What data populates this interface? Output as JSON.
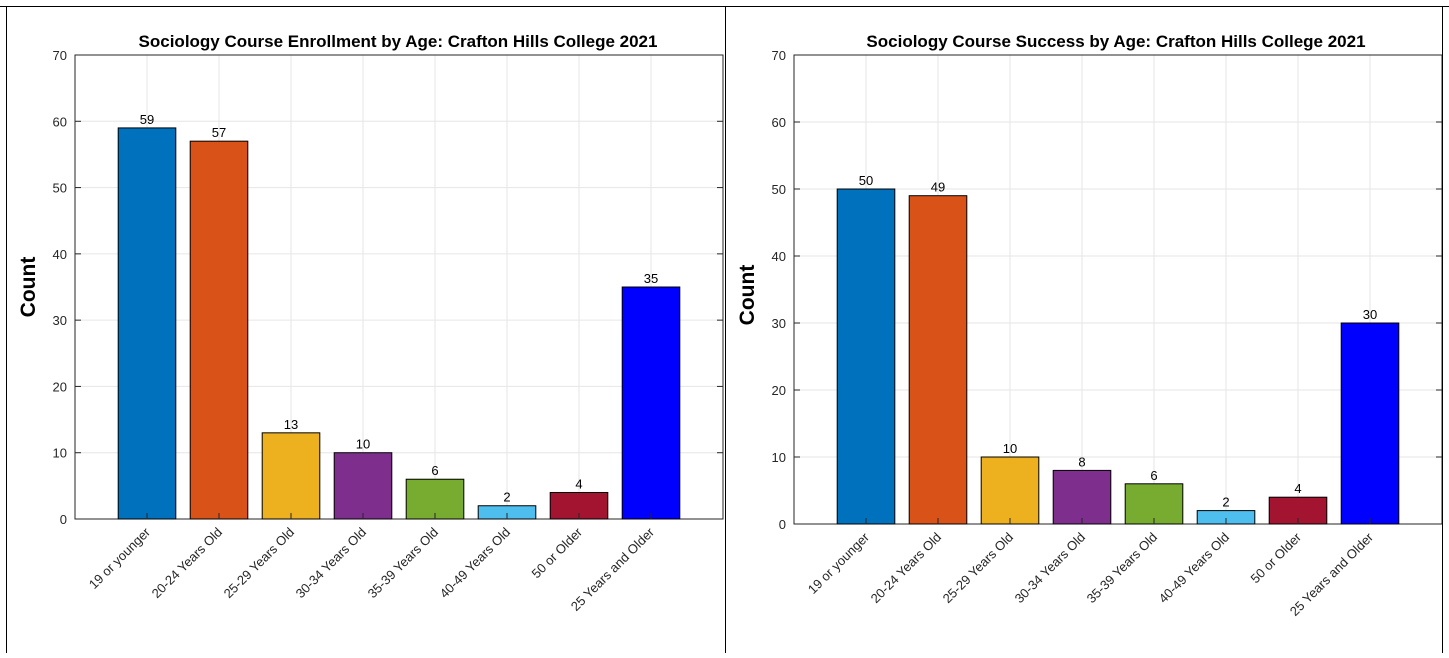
{
  "chart_data": [
    {
      "type": "bar",
      "title": "Sociology Course Enrollment by Age: Crafton Hills College 2021",
      "xlabel": "",
      "ylabel": "Count",
      "ylim": [
        0,
        70
      ],
      "yticks": [
        0,
        10,
        20,
        30,
        40,
        50,
        60,
        70
      ],
      "grid": true,
      "categories": [
        "19 or younger",
        "20-24 Years Old",
        "25-29 Years Old",
        "30-34 Years Old",
        "35-39 Years Old",
        "40-49 Years Old",
        "50 or Older",
        "25 Years and Older"
      ],
      "values": [
        59,
        57,
        13,
        10,
        6,
        2,
        4,
        35
      ],
      "colors": [
        "#0072BD",
        "#D95319",
        "#EDB120",
        "#7E2F8E",
        "#77AC30",
        "#4DBEEE",
        "#A2142F",
        "#0000FF"
      ]
    },
    {
      "type": "bar",
      "title": "Sociology Course Success by Age: Crafton Hills College 2021",
      "xlabel": "",
      "ylabel": "Count",
      "ylim": [
        0,
        70
      ],
      "yticks": [
        0,
        10,
        20,
        30,
        40,
        50,
        60,
        70
      ],
      "grid": true,
      "categories": [
        "19 or younger",
        "20-24 Years Old",
        "25-29 Years Old",
        "30-34 Years Old",
        "35-39 Years Old",
        "40-49 Years Old",
        "50 or Older",
        "25 Years and Older"
      ],
      "values": [
        50,
        49,
        10,
        8,
        6,
        2,
        4,
        30
      ],
      "colors": [
        "#0072BD",
        "#D95319",
        "#EDB120",
        "#7E2F8E",
        "#77AC30",
        "#4DBEEE",
        "#A2142F",
        "#0000FF"
      ]
    }
  ]
}
